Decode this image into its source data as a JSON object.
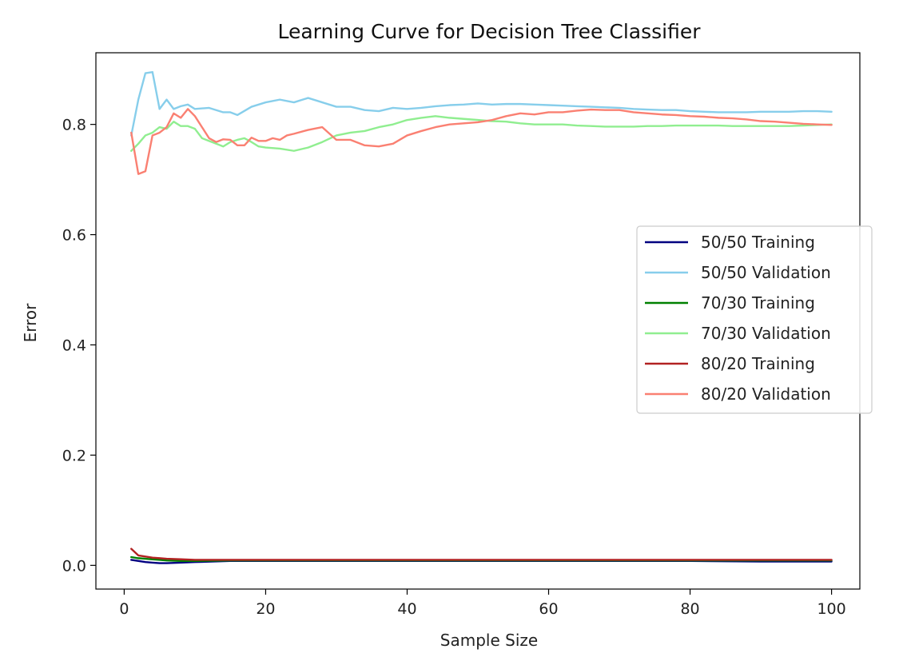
{
  "chart_data": {
    "type": "line",
    "title": "Learning Curve for Decision Tree Classifier",
    "xlabel": "Sample Size",
    "ylabel": "Error",
    "xlim": [
      -4,
      104
    ],
    "ylim": [
      -0.043,
      0.93
    ],
    "xticks": [
      0,
      20,
      40,
      60,
      80,
      100
    ],
    "yticks": [
      0.0,
      0.2,
      0.4,
      0.6,
      0.8
    ],
    "xtick_labels": [
      "0",
      "20",
      "40",
      "60",
      "80",
      "100"
    ],
    "ytick_labels": [
      "0.0",
      "0.2",
      "0.4",
      "0.6",
      "0.8"
    ],
    "grid": false,
    "legend_position": "center-right",
    "series": [
      {
        "name": "50/50 Training",
        "color": "#000080",
        "x": [
          1,
          2,
          3,
          4,
          5,
          6,
          8,
          10,
          15,
          20,
          30,
          40,
          50,
          60,
          70,
          80,
          90,
          100
        ],
        "y": [
          0.01,
          0.008,
          0.006,
          0.005,
          0.004,
          0.004,
          0.005,
          0.006,
          0.008,
          0.008,
          0.008,
          0.008,
          0.008,
          0.008,
          0.008,
          0.008,
          0.007,
          0.007
        ]
      },
      {
        "name": "50/50 Validation",
        "color": "#87CEEB",
        "x": [
          1,
          2,
          3,
          4,
          5,
          6,
          7,
          8,
          9,
          10,
          12,
          14,
          15,
          16,
          18,
          20,
          22,
          24,
          26,
          28,
          30,
          32,
          34,
          36,
          38,
          40,
          42,
          44,
          46,
          48,
          50,
          52,
          54,
          56,
          58,
          60,
          62,
          64,
          66,
          68,
          70,
          72,
          74,
          76,
          78,
          80,
          82,
          84,
          86,
          88,
          90,
          92,
          94,
          96,
          98,
          100
        ],
        "y": [
          0.78,
          0.845,
          0.893,
          0.895,
          0.828,
          0.845,
          0.828,
          0.833,
          0.836,
          0.828,
          0.83,
          0.822,
          0.822,
          0.817,
          0.832,
          0.84,
          0.845,
          0.84,
          0.848,
          0.84,
          0.832,
          0.832,
          0.826,
          0.824,
          0.83,
          0.828,
          0.83,
          0.833,
          0.835,
          0.836,
          0.838,
          0.836,
          0.837,
          0.837,
          0.836,
          0.835,
          0.834,
          0.833,
          0.832,
          0.831,
          0.83,
          0.828,
          0.827,
          0.826,
          0.826,
          0.824,
          0.823,
          0.822,
          0.822,
          0.822,
          0.823,
          0.823,
          0.823,
          0.824,
          0.824,
          0.823
        ]
      },
      {
        "name": "70/30 Training",
        "color": "#008000",
        "x": [
          1,
          2,
          3,
          4,
          5,
          6,
          8,
          10,
          15,
          20,
          30,
          40,
          50,
          60,
          70,
          80,
          90,
          100
        ],
        "y": [
          0.015,
          0.013,
          0.012,
          0.011,
          0.01,
          0.009,
          0.008,
          0.008,
          0.009,
          0.009,
          0.009,
          0.009,
          0.009,
          0.009,
          0.009,
          0.009,
          0.009,
          0.009
        ]
      },
      {
        "name": "70/30 Validation",
        "color": "#90EE90",
        "x": [
          1,
          2,
          3,
          4,
          5,
          6,
          7,
          8,
          9,
          10,
          11,
          12,
          13,
          14,
          15,
          16,
          17,
          18,
          19,
          20,
          22,
          24,
          26,
          28,
          30,
          32,
          34,
          36,
          38,
          40,
          42,
          44,
          46,
          48,
          50,
          52,
          54,
          56,
          58,
          60,
          62,
          64,
          66,
          68,
          70,
          72,
          74,
          76,
          78,
          80,
          82,
          84,
          86,
          88,
          90,
          92,
          94,
          96,
          98,
          100
        ],
        "y": [
          0.752,
          0.765,
          0.78,
          0.785,
          0.795,
          0.792,
          0.805,
          0.797,
          0.797,
          0.792,
          0.775,
          0.77,
          0.765,
          0.76,
          0.768,
          0.772,
          0.775,
          0.768,
          0.76,
          0.758,
          0.756,
          0.752,
          0.758,
          0.768,
          0.78,
          0.785,
          0.788,
          0.795,
          0.8,
          0.808,
          0.812,
          0.815,
          0.812,
          0.81,
          0.808,
          0.806,
          0.805,
          0.802,
          0.8,
          0.8,
          0.8,
          0.798,
          0.797,
          0.796,
          0.796,
          0.796,
          0.797,
          0.797,
          0.798,
          0.798,
          0.798,
          0.798,
          0.797,
          0.797,
          0.797,
          0.797,
          0.797,
          0.798,
          0.799,
          0.8
        ]
      },
      {
        "name": "80/20 Training",
        "color": "#B22222",
        "x": [
          1,
          2,
          3,
          4,
          5,
          6,
          8,
          10,
          15,
          20,
          30,
          40,
          50,
          60,
          70,
          80,
          90,
          100
        ],
        "y": [
          0.03,
          0.018,
          0.016,
          0.014,
          0.013,
          0.012,
          0.011,
          0.01,
          0.01,
          0.01,
          0.01,
          0.01,
          0.01,
          0.01,
          0.01,
          0.01,
          0.01,
          0.01
        ]
      },
      {
        "name": "80/20 Validation",
        "color": "#FA8072",
        "x": [
          1,
          2,
          3,
          4,
          5,
          6,
          7,
          8,
          9,
          10,
          11,
          12,
          13,
          14,
          15,
          16,
          17,
          18,
          19,
          20,
          21,
          22,
          23,
          24,
          26,
          28,
          30,
          32,
          34,
          36,
          38,
          40,
          42,
          44,
          46,
          48,
          50,
          52,
          54,
          56,
          58,
          60,
          62,
          64,
          66,
          68,
          70,
          72,
          74,
          76,
          78,
          80,
          82,
          84,
          86,
          88,
          90,
          92,
          94,
          96,
          98,
          100
        ],
        "y": [
          0.785,
          0.71,
          0.715,
          0.78,
          0.785,
          0.795,
          0.82,
          0.812,
          0.828,
          0.815,
          0.795,
          0.775,
          0.768,
          0.773,
          0.772,
          0.762,
          0.762,
          0.776,
          0.77,
          0.77,
          0.775,
          0.772,
          0.78,
          0.783,
          0.79,
          0.795,
          0.772,
          0.772,
          0.762,
          0.76,
          0.765,
          0.78,
          0.788,
          0.795,
          0.8,
          0.802,
          0.804,
          0.808,
          0.815,
          0.82,
          0.818,
          0.822,
          0.822,
          0.825,
          0.827,
          0.826,
          0.826,
          0.822,
          0.82,
          0.818,
          0.817,
          0.815,
          0.814,
          0.812,
          0.811,
          0.809,
          0.806,
          0.805,
          0.803,
          0.801,
          0.8,
          0.799
        ]
      }
    ]
  }
}
